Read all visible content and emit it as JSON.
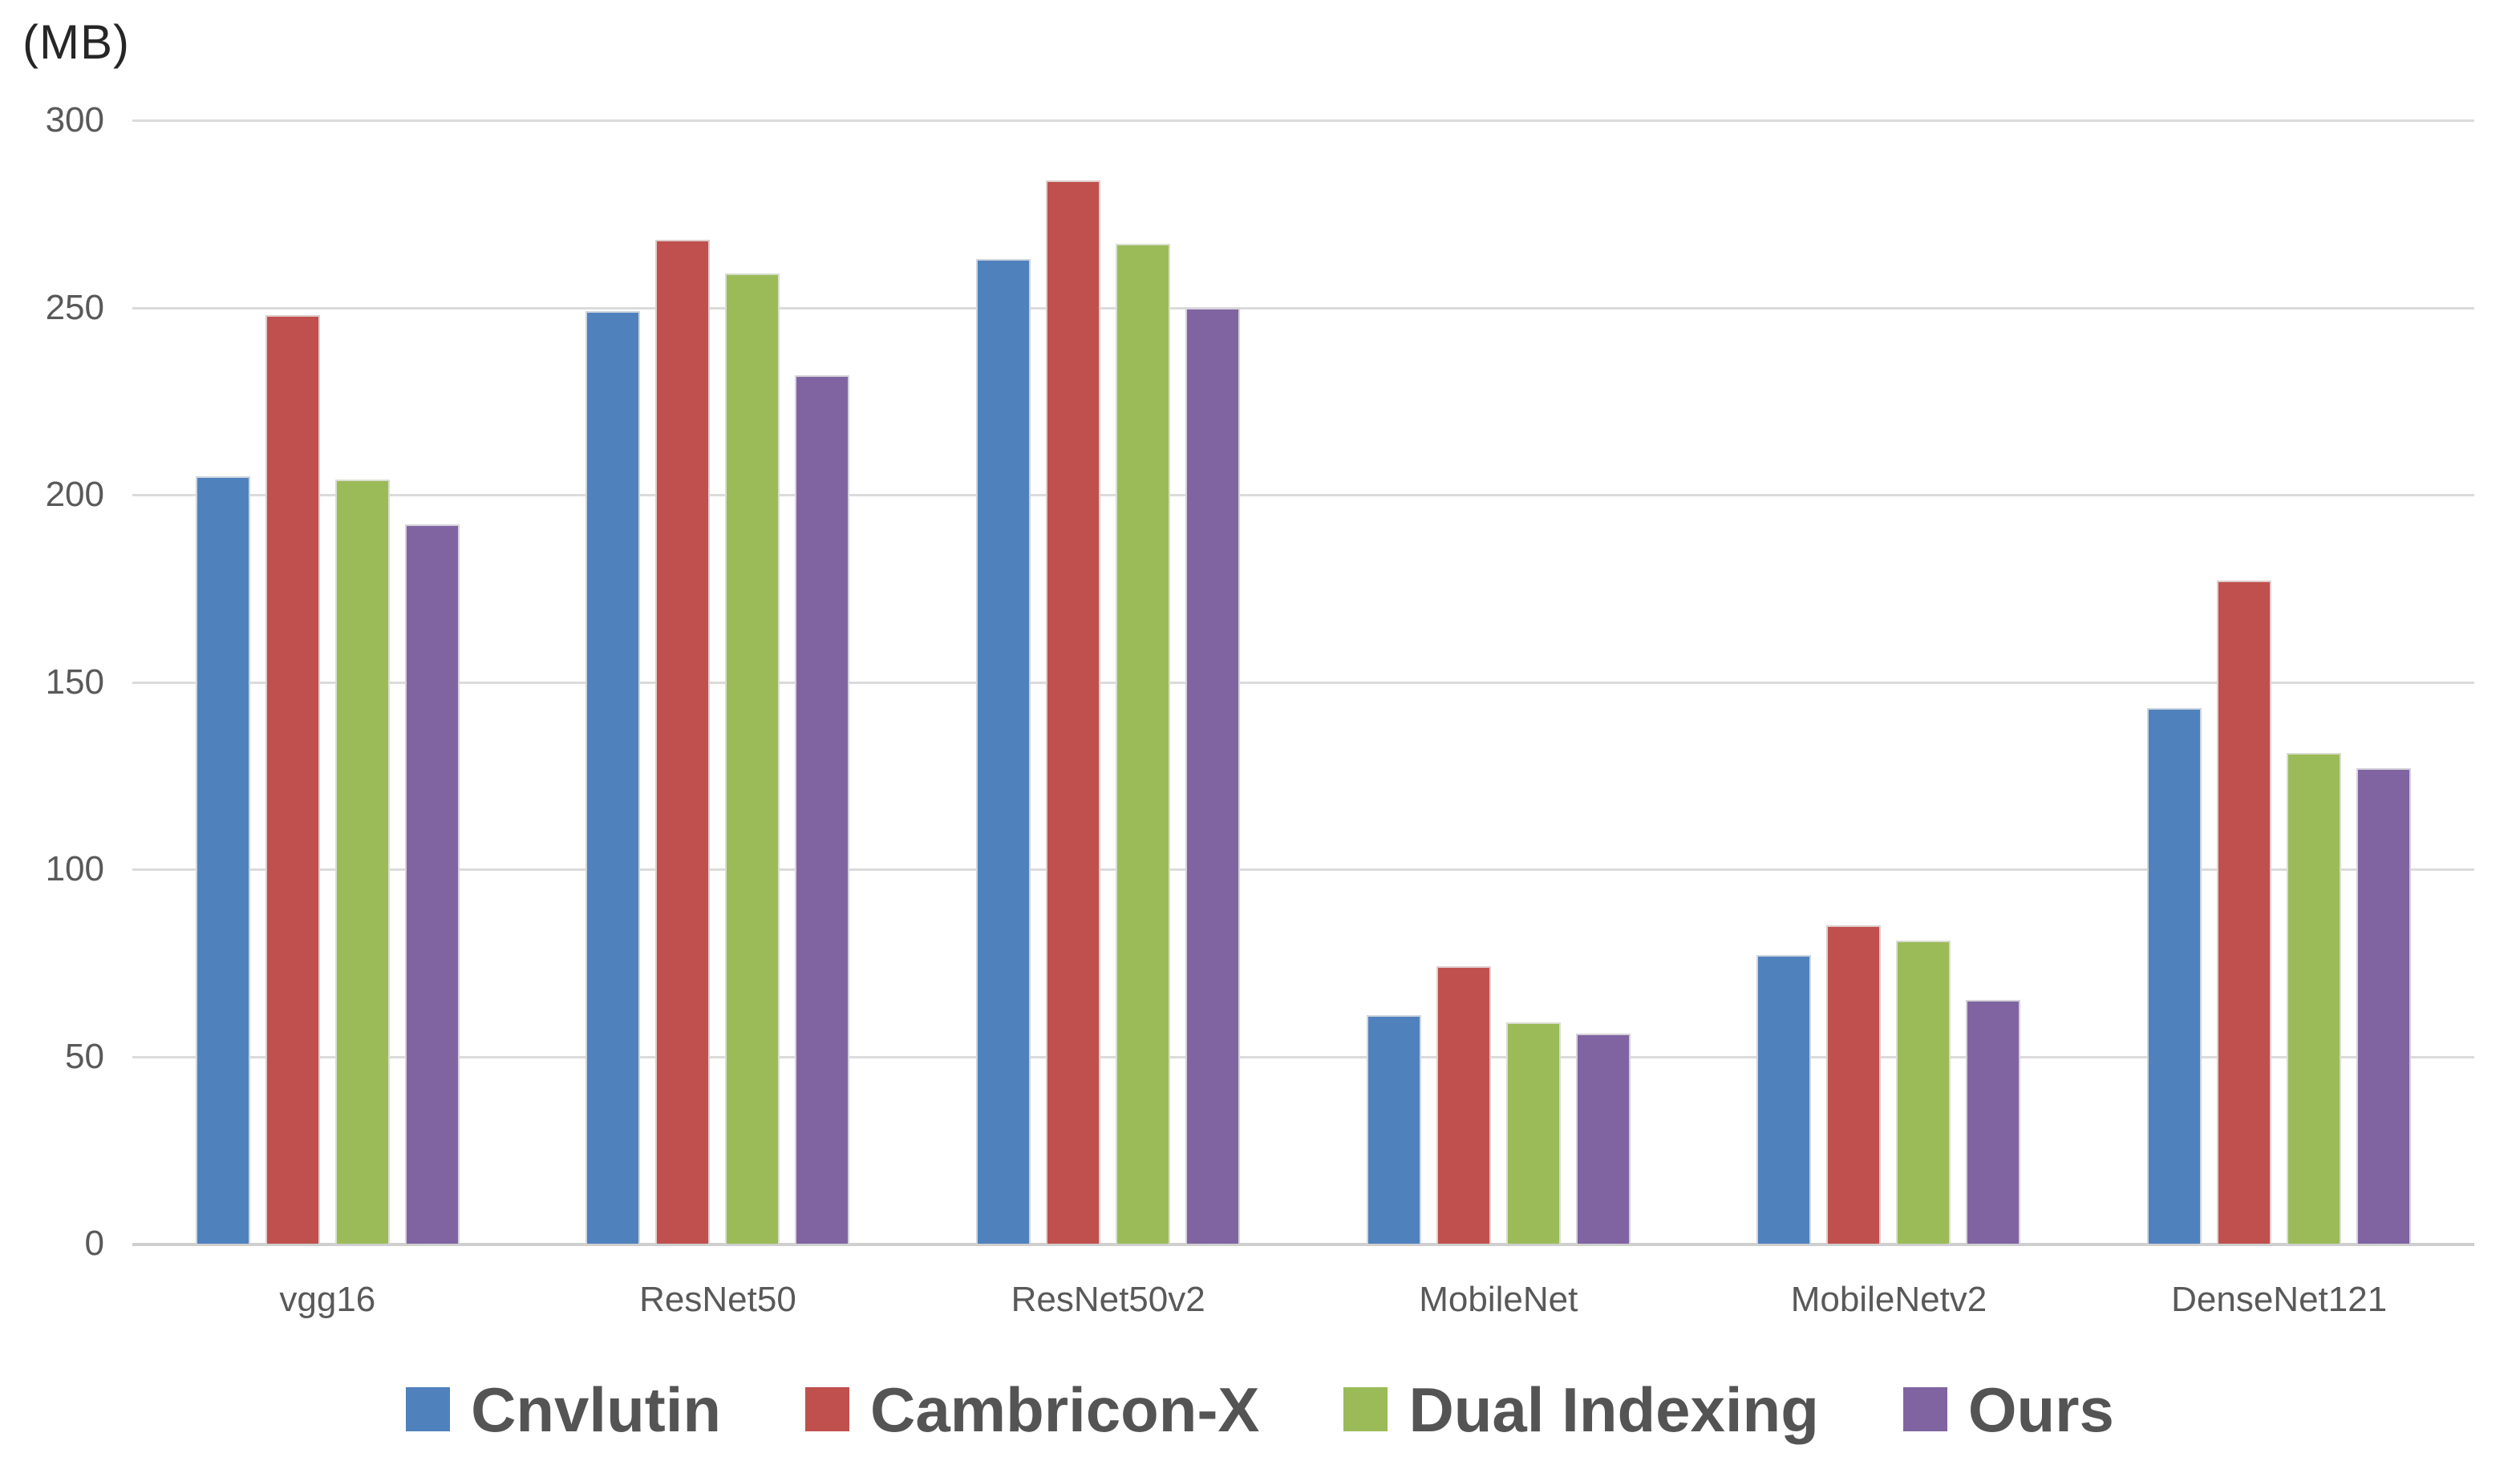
{
  "chart_data": {
    "type": "bar",
    "title": "",
    "unit_label": "(MB)",
    "xlabel": "",
    "ylabel": "(MB)",
    "ylim": [
      0,
      300
    ],
    "ytick_step": 50,
    "yticks": [
      300,
      250,
      200,
      150,
      100,
      50,
      0
    ],
    "grid": true,
    "legend_position": "bottom",
    "categories": [
      "vgg16",
      "ResNet50",
      "ResNet50v2",
      "MobileNet",
      "MobileNetv2",
      "DenseNet121"
    ],
    "series": [
      {
        "name": "Cnvlutin",
        "color": "#4F81BD",
        "values": [
          205,
          249,
          263,
          61,
          77,
          143
        ]
      },
      {
        "name": "Cambricon-X",
        "color": "#C0504D",
        "values": [
          248,
          268,
          284,
          74,
          85,
          177
        ]
      },
      {
        "name": "Dual Indexing",
        "color": "#9BBB59",
        "values": [
          204,
          259,
          267,
          59,
          81,
          131
        ]
      },
      {
        "name": "Ours",
        "color": "#8064A2",
        "values": [
          192,
          232,
          250,
          56,
          65,
          127
        ]
      }
    ]
  },
  "style_colors": {
    "gridline": "#DBDBDB",
    "axis_line": "#CFCFCF",
    "tick_label": "#595959",
    "category_label": "#595959",
    "legend_label": "#545454"
  }
}
